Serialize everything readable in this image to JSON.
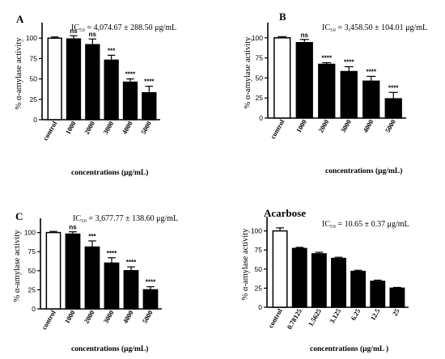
{
  "chart_data": [
    {
      "type": "bar",
      "panel_label": "A",
      "ic50": "IC₅₀ =  4,074.67 ±  288.50 μg/mL",
      "categories": [
        "control",
        "1000",
        "2000",
        "3000",
        "4000",
        "5000"
      ],
      "values": [
        100,
        99,
        92,
        73,
        46,
        33
      ],
      "errors": [
        1.5,
        4,
        7,
        6,
        4,
        8
      ],
      "significance": [
        "",
        "ns",
        "ns",
        "***",
        "****",
        "****"
      ],
      "ylabel": "% α-amylase activity",
      "xlabel": "concentrations (μg/mL)",
      "yticks": [
        0,
        25,
        50,
        75,
        100
      ],
      "ylim": [
        0,
        125
      ]
    },
    {
      "type": "bar",
      "panel_label": "B",
      "ic50": "IC₅₀ =  3,458.50 ±  104.01 μg/mL",
      "categories": [
        "control",
        "1000",
        "2000",
        "3000",
        "4000",
        "5000"
      ],
      "values": [
        100,
        94,
        67,
        58,
        46,
        24
      ],
      "errors": [
        1.5,
        4,
        2,
        6,
        6,
        8
      ],
      "significance": [
        "",
        "ns",
        "****",
        "****",
        "****",
        "****"
      ],
      "ylabel": "% α-amylase activity",
      "xlabel": "concentrations (μg/mL)",
      "yticks": [
        0,
        25,
        50,
        75,
        100
      ],
      "ylim": [
        0,
        125
      ]
    },
    {
      "type": "bar",
      "panel_label": "C",
      "ic50": "IC₅₀ = 3,677.77 ±  138.60 μg/mL",
      "categories": [
        "control",
        "1000",
        "2000",
        "3000",
        "4000",
        "5000"
      ],
      "values": [
        100,
        98,
        81,
        60,
        50,
        25
      ],
      "errors": [
        1.5,
        3,
        8,
        7,
        5,
        4
      ],
      "significance": [
        "",
        "ns",
        "***",
        "****",
        "****",
        "****"
      ],
      "ylabel": "% α-amylase activity",
      "xlabel": "concentrations (μg/mL)",
      "yticks": [
        0,
        25,
        50,
        75,
        100
      ],
      "ylim": [
        0,
        125
      ]
    },
    {
      "type": "bar",
      "panel_label": "Acarbose",
      "ic50": "IC₅₀ = 10.65 ±  0.37 μg/mL",
      "categories": [
        "control",
        "0.78125",
        "1.5625",
        "3.125",
        "6.25",
        "12.5",
        "25"
      ],
      "values": [
        100,
        77,
        70,
        64,
        47,
        34,
        25
      ],
      "errors": [
        4,
        1.5,
        2,
        1.5,
        1.5,
        1.5,
        1
      ],
      "significance": [
        "",
        "",
        "",
        "",
        "",
        "",
        ""
      ],
      "ylabel": "% α-amylase activity",
      "xlabel": "concentrations (μg/mL )",
      "yticks": [
        0,
        25,
        50,
        75,
        100
      ],
      "ylim": [
        0,
        125
      ]
    }
  ]
}
